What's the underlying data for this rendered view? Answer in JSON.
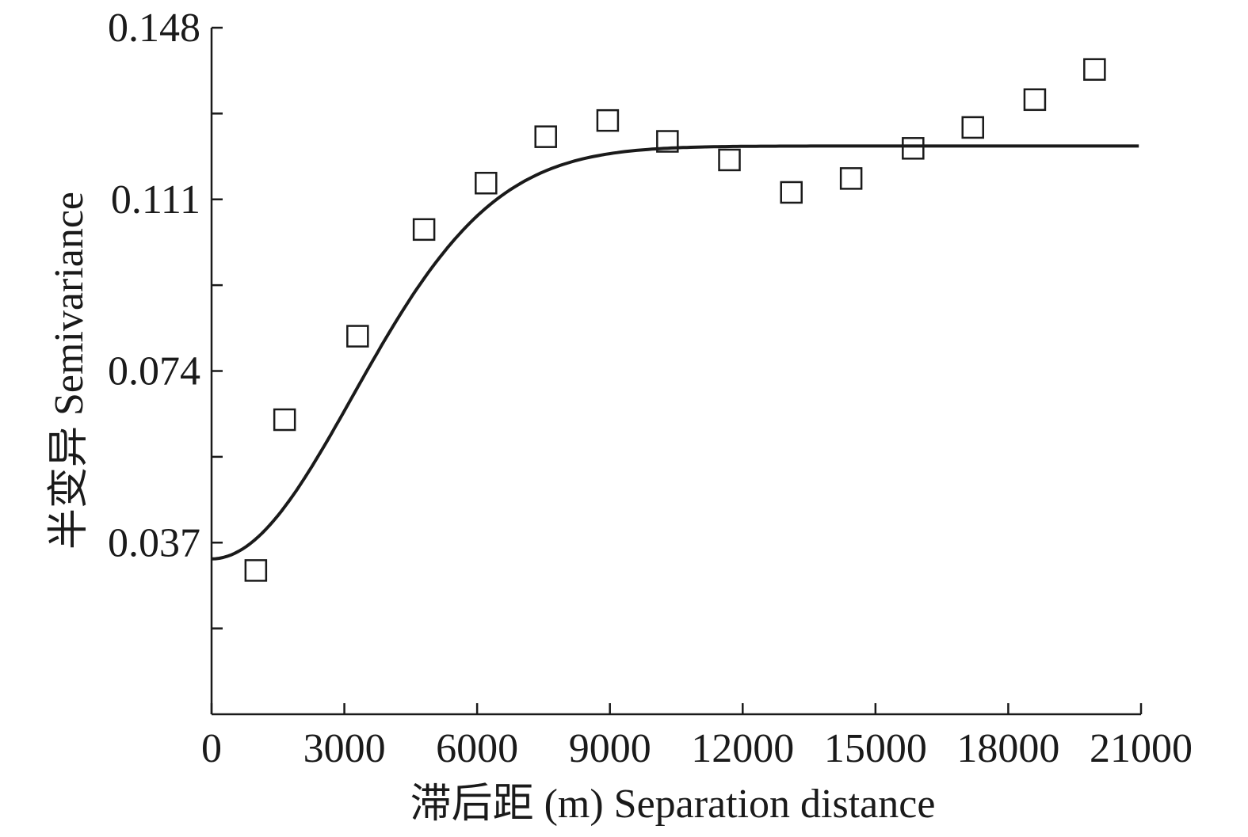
{
  "chart_data": {
    "type": "scatter",
    "title": "",
    "xlabel": "滞后距 (m) Separation distance",
    "ylabel": "半变异 Semivariance",
    "xlim": [
      0,
      21000
    ],
    "ylim": [
      0,
      0.148
    ],
    "x_ticks": [
      0,
      3000,
      6000,
      9000,
      12000,
      15000,
      18000,
      21000
    ],
    "x_tick_labels": [
      "0",
      "3000",
      "6000",
      "9000",
      "12000",
      "15000",
      "18000",
      "21000"
    ],
    "y_ticks": [
      0.037,
      0.074,
      0.111,
      0.148
    ],
    "y_tick_labels": [
      "0.037",
      "0.074",
      "0.111",
      "0.148"
    ],
    "y_minor_ticks": [
      0.0185,
      0.0555,
      0.0925,
      0.1295
    ],
    "grid": false,
    "legend": "none",
    "series": [
      {
        "kind": "points",
        "marker": "open-square",
        "x": [
          1000,
          1650,
          3300,
          4800,
          6200,
          7550,
          8950,
          10300,
          11700,
          13100,
          14450,
          15850,
          17200,
          18600,
          19950
        ],
        "y": [
          0.031,
          0.0635,
          0.0815,
          0.1045,
          0.1145,
          0.1245,
          0.128,
          0.1235,
          0.1195,
          0.1125,
          0.1155,
          0.122,
          0.1265,
          0.1325,
          0.139
        ]
      },
      {
        "kind": "fitted-curve",
        "model": "gaussian",
        "nugget": 0.0335,
        "sill": 0.1225,
        "range": 7800,
        "x_range": [
          0,
          20950
        ]
      }
    ],
    "colors": {
      "line": "#1a1a1a",
      "marker": "#1a1a1a",
      "background": "#ffffff"
    }
  }
}
